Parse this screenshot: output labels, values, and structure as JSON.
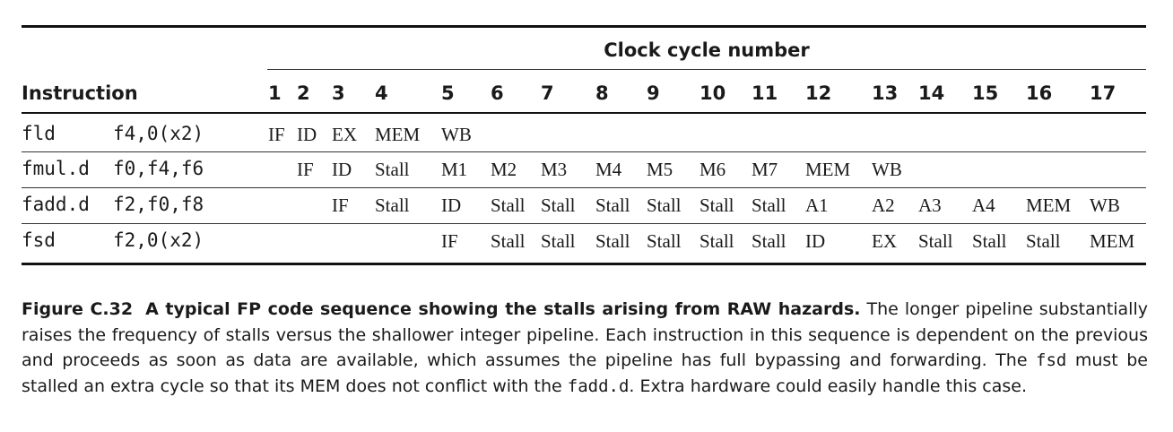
{
  "table": {
    "group_title": "Clock cycle number",
    "instruction_header": "Instruction",
    "cycle_headers": [
      "1",
      "2",
      "3",
      "4",
      "5",
      "6",
      "7",
      "8",
      "9",
      "10",
      "11",
      "12",
      "13",
      "14",
      "15",
      "16",
      "17"
    ],
    "rows": [
      {
        "opcode": "fld",
        "operands": "f4,0(x2)",
        "cells": [
          "IF",
          "ID",
          "EX",
          "MEM",
          "WB",
          "",
          "",
          "",
          "",
          "",
          "",
          "",
          "",
          "",
          "",
          "",
          ""
        ]
      },
      {
        "opcode": "fmul.d",
        "operands": "f0,f4,f6",
        "cells": [
          "",
          "IF",
          "ID",
          "Stall",
          "M1",
          "M2",
          "M3",
          "M4",
          "M5",
          "M6",
          "M7",
          "MEM",
          "WB",
          "",
          "",
          "",
          ""
        ]
      },
      {
        "opcode": "fadd.d",
        "operands": "f2,f0,f8",
        "cells": [
          "",
          "",
          "IF",
          "Stall",
          "ID",
          "Stall",
          "Stall",
          "Stall",
          "Stall",
          "Stall",
          "Stall",
          "A1",
          "A2",
          "A3",
          "A4",
          "MEM",
          "WB"
        ]
      },
      {
        "opcode": "fsd",
        "operands": "f2,0(x2)",
        "cells": [
          "",
          "",
          "",
          "",
          "IF",
          "Stall",
          "Stall",
          "Stall",
          "Stall",
          "Stall",
          "Stall",
          "ID",
          "EX",
          "Stall",
          "Stall",
          "Stall",
          "MEM"
        ]
      }
    ]
  },
  "caption": {
    "label": "Figure C.32",
    "title": "A typical FP code sequence showing the stalls arising from RAW hazards.",
    "text1": "The longer pipeline substantially raises the frequency of stalls versus the shallower integer pipeline. Each instruction in this sequence is dependent on the previous and proceeds as soon as data are available, which assumes the pipeline has full bypassing and forwarding. The",
    "code1": "fsd",
    "text2": "must be stalled an extra cycle so that its MEM does not conflict with the",
    "code2": "fadd.d",
    "text3": ". Extra hardware could easily handle this case."
  }
}
